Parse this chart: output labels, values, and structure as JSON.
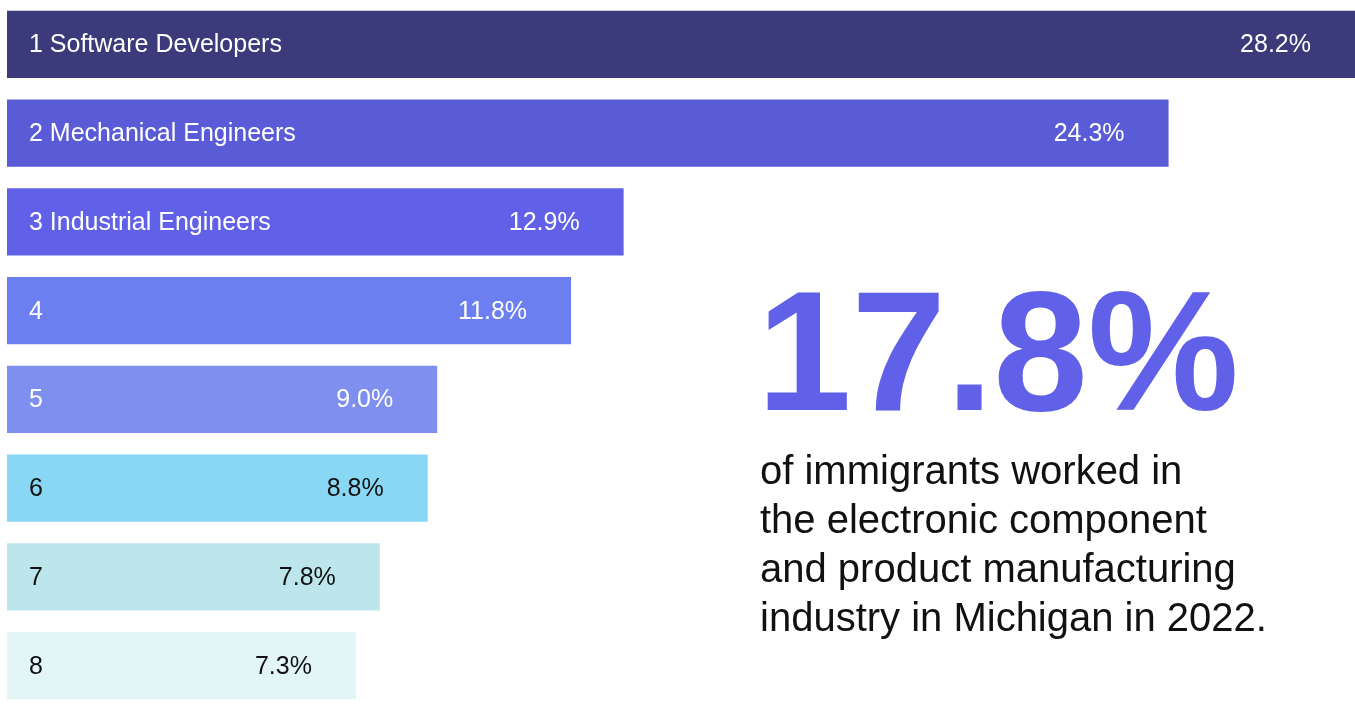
{
  "chart_data": {
    "type": "bar",
    "orientation": "horizontal",
    "categories": [
      "1 Software Developers",
      "2 Mechanical Engineers",
      "3 Industrial Engineers",
      "4",
      "5",
      "6",
      "7",
      "8"
    ],
    "values": [
      28.2,
      24.3,
      12.9,
      11.8,
      9.0,
      8.8,
      7.8,
      7.3
    ],
    "value_labels": [
      "28.2%",
      "24.3%",
      "12.9%",
      "11.8%",
      "9.0%",
      "8.8%",
      "7.8%",
      "7.3%"
    ],
    "colors": [
      "#3b3a7a",
      "#5a5bd6",
      "#6060e8",
      "#6b7ff0",
      "#7f8ff0",
      "#88d8f5",
      "#bde6ec",
      "#e2f5f7"
    ],
    "annotations": [
      "17.8%",
      "of immigrants worked in\nthe electronic component\nand product manufacturing\nindustry in Michigan in 2022."
    ]
  }
}
